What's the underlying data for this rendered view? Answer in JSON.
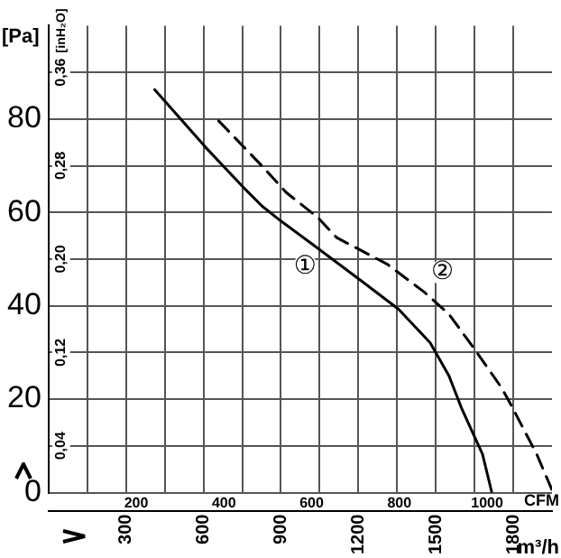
{
  "chart_data": {
    "type": "line",
    "xlabel": "m³/h",
    "x2label": "CFM",
    "ylabel": "[Pa]",
    "y2label": "[inH₂O]",
    "xlim": [
      0,
      1950
    ],
    "xticks": [
      {
        "value": 150,
        "label": null
      },
      300,
      {
        "value": 450,
        "label": null
      },
      600,
      {
        "value": 750,
        "label": null
      },
      900,
      {
        "value": 1050,
        "label": null
      },
      1200,
      {
        "value": 1350,
        "label": null
      },
      1500,
      {
        "value": 1650,
        "label": null
      },
      1800
    ],
    "x2lim": [
      0,
      1148
    ],
    "x2ticks": [
      200,
      400,
      600,
      800,
      1000
    ],
    "ylim": [
      0,
      100
    ],
    "yticks": [
      0,
      {
        "value": 10,
        "label": null
      },
      20,
      {
        "value": 30,
        "label": null
      },
      40,
      {
        "value": 50,
        "label": null
      },
      60,
      {
        "value": 70,
        "label": null
      },
      80,
      {
        "value": 90,
        "label": null
      }
    ],
    "y2lim": [
      0,
      0.4
    ],
    "y2ticks": [
      {
        "value": 0.04,
        "label": "0,04"
      },
      {
        "value": 0.12,
        "label": "0,12"
      },
      {
        "value": 0.2,
        "label": "0,20"
      },
      {
        "value": 0.28,
        "label": "0,28"
      },
      {
        "value": 0.36,
        "label": "0,36"
      }
    ],
    "series": [
      {
        "name": "①",
        "color": "#000000",
        "line_style": "solid",
        "x": [
          411,
          609,
          754,
          826,
          899,
          1029,
          1210,
          1355,
          1478,
          1551,
          1601,
          1681,
          1717
        ],
        "values": [
          86.3,
          73.9,
          65.4,
          61.4,
          58.2,
          52.9,
          45.4,
          39.3,
          32.1,
          25,
          17.9,
          8.2,
          0
        ]
      },
      {
        "name": "②",
        "color": "#000000",
        "line_style": "dashed",
        "x": [
          659,
          826,
          920,
          1043,
          1116,
          1312,
          1456,
          1551,
          1645,
          1754,
          1790,
          1891,
          1949
        ],
        "values": [
          79.6,
          70,
          64.3,
          58.9,
          54.6,
          48.9,
          42.9,
          38.2,
          31.1,
          22.5,
          18.9,
          8.2,
          0.7
        ]
      }
    ],
    "grid": true,
    "legend": false,
    "marker": "none"
  }
}
